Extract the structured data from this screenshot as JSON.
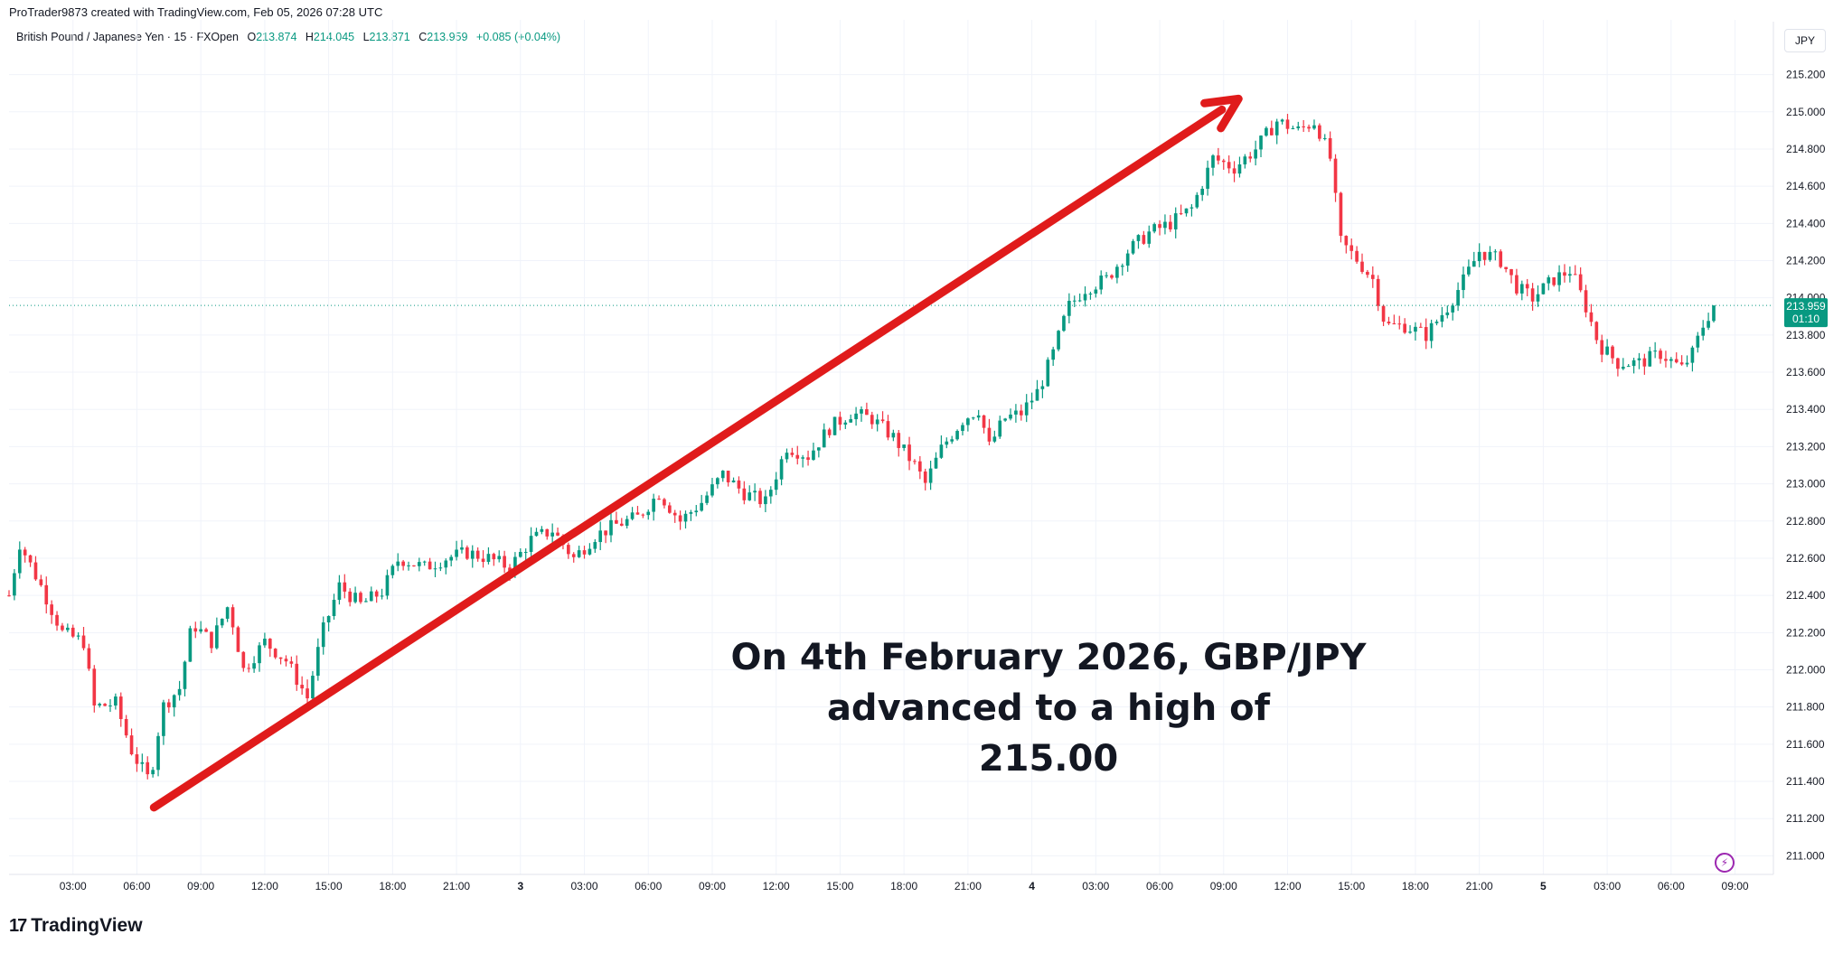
{
  "header": {
    "credit": "ProTrader9873 created with TradingView.com, Feb 05, 2026 07:28 UTC"
  },
  "legend": {
    "symbol": "British Pound / Japanese Yen · 15 · FXOpen",
    "open_label": "O",
    "open": "213.874",
    "high_label": "H",
    "high": "214.045",
    "low_label": "L",
    "low": "213.871",
    "close_label": "C",
    "close": "213.959",
    "change": "+0.085 (+0.04%)"
  },
  "currency_button": "JPY",
  "price_tag": {
    "price": "213.959",
    "countdown": "01:10"
  },
  "annotation": {
    "line1": "On 4th February 2026, GBP/JPY advanced to a high of",
    "line2": "215.00"
  },
  "footer": {
    "logo_text": "TradingView"
  },
  "colors": {
    "up": "#089981",
    "down": "#f23645",
    "arrow": "#e01b1b",
    "last_price": "#089981"
  },
  "icons": {
    "flash": "flash-icon",
    "logo": "tradingview-logo-icon"
  },
  "chart_data": {
    "type": "candlestick",
    "title": "British Pound / Japanese Yen · 15 · FXOpen",
    "ylim": [
      210.9,
      215.3
    ],
    "y_ticks": [
      "211.000",
      "211.200",
      "211.400",
      "211.600",
      "211.800",
      "212.000",
      "212.200",
      "212.400",
      "212.600",
      "212.800",
      "213.000",
      "213.200",
      "213.400",
      "213.600",
      "213.800",
      "214.000",
      "214.200",
      "214.400",
      "214.600",
      "214.800",
      "215.000",
      "215.200"
    ],
    "x_ticks": [
      {
        "label": "03:00",
        "t": 3
      },
      {
        "label": "06:00",
        "t": 6
      },
      {
        "label": "09:00",
        "t": 9
      },
      {
        "label": "12:00",
        "t": 12
      },
      {
        "label": "15:00",
        "t": 15
      },
      {
        "label": "18:00",
        "t": 18
      },
      {
        "label": "21:00",
        "t": 21
      },
      {
        "label": "3",
        "t": 24
      },
      {
        "label": "03:00",
        "t": 27
      },
      {
        "label": "06:00",
        "t": 30
      },
      {
        "label": "09:00",
        "t": 33
      },
      {
        "label": "12:00",
        "t": 36
      },
      {
        "label": "15:00",
        "t": 39
      },
      {
        "label": "18:00",
        "t": 42
      },
      {
        "label": "21:00",
        "t": 45
      },
      {
        "label": "4",
        "t": 48
      },
      {
        "label": "03:00",
        "t": 51
      },
      {
        "label": "06:00",
        "t": 54
      },
      {
        "label": "09:00",
        "t": 57
      },
      {
        "label": "12:00",
        "t": 60
      },
      {
        "label": "15:00",
        "t": 63
      },
      {
        "label": "18:00",
        "t": 66
      },
      {
        "label": "21:00",
        "t": 69
      },
      {
        "label": "5",
        "t": 72
      },
      {
        "label": "03:00",
        "t": 75
      },
      {
        "label": "06:00",
        "t": 78
      },
      {
        "label": "09:00",
        "t": 81
      }
    ],
    "x_range": [
      0.0,
      82.8
    ],
    "last_price": 213.959,
    "trend_arrow": {
      "from": {
        "t": 6.8,
        "price": 211.26
      },
      "to": {
        "t": 57.7,
        "price": 215.07
      }
    },
    "close_path": [
      [
        0.0,
        212.4
      ],
      [
        0.5,
        212.68
      ],
      [
        1.5,
        212.45
      ],
      [
        2.5,
        212.2
      ],
      [
        3.5,
        212.15
      ],
      [
        4.0,
        211.8
      ],
      [
        5.0,
        211.82
      ],
      [
        5.8,
        211.55
      ],
      [
        6.6,
        211.4
      ],
      [
        7.2,
        211.8
      ],
      [
        8.0,
        211.9
      ],
      [
        8.6,
        212.25
      ],
      [
        9.5,
        212.15
      ],
      [
        10.3,
        212.35
      ],
      [
        11.0,
        212.0
      ],
      [
        12.0,
        212.15
      ],
      [
        13.0,
        212.05
      ],
      [
        14.0,
        211.85
      ],
      [
        14.7,
        212.2
      ],
      [
        15.5,
        212.45
      ],
      [
        16.5,
        212.35
      ],
      [
        17.5,
        212.42
      ],
      [
        18.3,
        212.6
      ],
      [
        19.5,
        212.55
      ],
      [
        20.5,
        212.6
      ],
      [
        21.5,
        212.63
      ],
      [
        22.5,
        212.6
      ],
      [
        23.5,
        212.55
      ],
      [
        24.5,
        212.7
      ],
      [
        25.5,
        212.75
      ],
      [
        26.5,
        212.6
      ],
      [
        27.5,
        212.72
      ],
      [
        28.5,
        212.78
      ],
      [
        29.5,
        212.82
      ],
      [
        30.5,
        212.95
      ],
      [
        31.5,
        212.8
      ],
      [
        32.5,
        212.9
      ],
      [
        33.5,
        213.05
      ],
      [
        34.5,
        212.95
      ],
      [
        35.5,
        212.9
      ],
      [
        36.5,
        213.2
      ],
      [
        37.5,
        213.15
      ],
      [
        38.5,
        213.3
      ],
      [
        39.5,
        213.38
      ],
      [
        40.5,
        213.35
      ],
      [
        41.5,
        213.25
      ],
      [
        42.5,
        213.1
      ],
      [
        43.0,
        213.0
      ],
      [
        43.8,
        213.2
      ],
      [
        44.8,
        213.35
      ],
      [
        45.5,
        213.4
      ],
      [
        46.0,
        213.2
      ],
      [
        46.7,
        213.35
      ],
      [
        47.5,
        213.38
      ],
      [
        48.3,
        213.5
      ],
      [
        49.0,
        213.7
      ],
      [
        49.7,
        213.95
      ],
      [
        50.5,
        214.05
      ],
      [
        51.5,
        214.1
      ],
      [
        52.5,
        214.25
      ],
      [
        53.5,
        214.35
      ],
      [
        54.5,
        214.4
      ],
      [
        55.5,
        214.48
      ],
      [
        56.5,
        214.75
      ],
      [
        57.5,
        214.7
      ],
      [
        58.5,
        214.8
      ],
      [
        59.5,
        214.95
      ],
      [
        60.5,
        214.9
      ],
      [
        61.3,
        214.95
      ],
      [
        62.0,
        214.75
      ],
      [
        62.5,
        214.3
      ],
      [
        63.3,
        214.2
      ],
      [
        64.0,
        214.1
      ],
      [
        64.6,
        213.85
      ],
      [
        65.5,
        213.85
      ],
      [
        66.5,
        213.8
      ],
      [
        67.5,
        213.95
      ],
      [
        68.3,
        214.1
      ],
      [
        69.0,
        214.25
      ],
      [
        70.0,
        214.2
      ],
      [
        70.8,
        214.05
      ],
      [
        71.5,
        214.0
      ],
      [
        72.5,
        214.1
      ],
      [
        73.3,
        214.15
      ],
      [
        74.0,
        213.95
      ],
      [
        74.6,
        213.75
      ],
      [
        75.5,
        213.65
      ],
      [
        76.5,
        213.65
      ],
      [
        77.5,
        213.7
      ],
      [
        78.5,
        213.62
      ],
      [
        79.0,
        213.7
      ],
      [
        79.5,
        213.85
      ],
      [
        80.0,
        213.96
      ]
    ]
  }
}
